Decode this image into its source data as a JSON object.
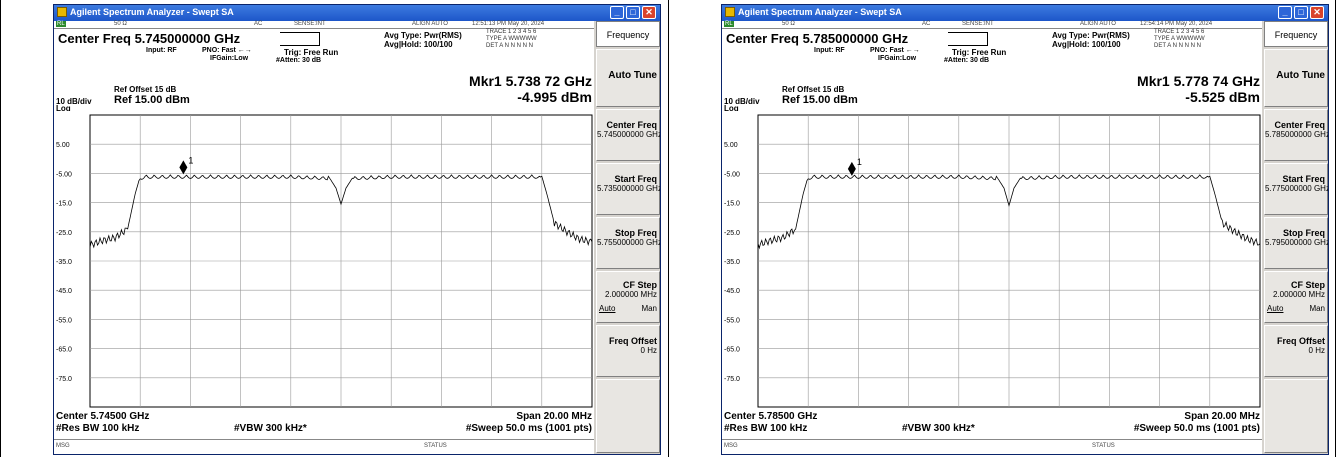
{
  "panels": [
    {
      "window_title": "Agilent Spectrum Analyzer - Swept SA",
      "status_strip": {
        "rl": "RL",
        "impedance": "50 Ω",
        "coupling": "AC",
        "sense": "SENSE:INT",
        "align": "ALIGN AUTO",
        "datetime": "12:51:13 PM May 20, 2024"
      },
      "center_freq_label": "Center Freq 5.745000000 GHz",
      "input": "Input: RF",
      "pno": "PNO: Fast ←→",
      "ifgain": "IFGain:Low",
      "trig": "Trig: Free Run",
      "atten": "#Atten: 30 dB",
      "avg_type": "Avg Type: Pwr(RMS)",
      "avg_hold": "Avg|Hold: 100/100",
      "trace_line1": "TRACE 1 2 3 4 5 6",
      "trace_line2": "TYPE A WWWWW",
      "trace_line3": "DET A N N N N N",
      "ref_offset": "Ref Offset 15 dB",
      "scale": "10 dB/div",
      "ref_level": "Ref 15.00 dBm",
      "log": "Log",
      "marker_freq": "Mkr1 5.738 72 GHz",
      "marker_level": "-4.995 dBm",
      "center_bottom": "Center 5.74500 GHz",
      "span": "Span 20.00 MHz",
      "res_bw": "#Res BW 100 kHz",
      "vbw": "#VBW 300 kHz*",
      "sweep": "#Sweep  50.0 ms (1001 pts)",
      "msg": "MSG",
      "status": "STATUS",
      "marker_number": "1",
      "chart_data": {
        "type": "line",
        "ylim": [
          -85,
          15
        ],
        "y_ticks": [
          "5.00",
          "-5.00",
          "-15.0",
          "-25.0",
          "-35.0",
          "-45.0",
          "-55.0",
          "-65.0",
          "-75.0"
        ],
        "x_range_mhz": [
          5735,
          5755
        ],
        "series": [
          {
            "x": [
              5735.0,
              5735.5,
              5736.0,
              5736.5,
              5736.8,
              5737.0,
              5737.2,
              5740.0,
              5743.0,
              5744.5,
              5744.8,
              5745.0,
              5745.2,
              5745.5,
              5747.0,
              5750.0,
              5752.8,
              5753.0,
              5753.2,
              5753.5,
              5754.0,
              5754.5,
              5755.0
            ],
            "y": [
              -29.5,
              -28.0,
              -27.0,
              -24.0,
              -12.0,
              -6.0,
              -5.5,
              -5.5,
              -5.5,
              -6.0,
              -10.0,
              -15.5,
              -10.0,
              -6.0,
              -5.5,
              -5.5,
              -5.5,
              -6.0,
              -12.0,
              -22.0,
              -25.0,
              -27.5,
              -28.5
            ]
          }
        ],
        "marker": {
          "x": 5738.72,
          "y": -4.995
        }
      },
      "softkeys": {
        "title": "Frequency",
        "auto_tune": "Auto Tune",
        "center_freq": "Center Freq",
        "center_freq_val": "5.745000000 GHz",
        "start_freq": "Start Freq",
        "start_freq_val": "5.735000000 GHz",
        "stop_freq": "Stop Freq",
        "stop_freq_val": "5.755000000 GHz",
        "cf_step": "CF Step",
        "cf_step_val": "2.000000 MHz",
        "auto": "Auto",
        "man": "Man",
        "freq_offset": "Freq Offset",
        "freq_offset_val": "0 Hz"
      }
    },
    {
      "window_title": "Agilent Spectrum Analyzer - Swept SA",
      "status_strip": {
        "rl": "RL",
        "impedance": "50 Ω",
        "coupling": "AC",
        "sense": "SENSE:INT",
        "align": "ALIGN AUTO",
        "datetime": "12:54:14 PM May 20, 2024"
      },
      "center_freq_label": "Center Freq 5.785000000 GHz",
      "input": "Input: RF",
      "pno": "PNO: Fast ←→",
      "ifgain": "IFGain:Low",
      "trig": "Trig: Free Run",
      "atten": "#Atten: 30 dB",
      "avg_type": "Avg Type: Pwr(RMS)",
      "avg_hold": "Avg|Hold: 100/100",
      "trace_line1": "TRACE 1 2 3 4 5 6",
      "trace_line2": "TYPE A WWWWW",
      "trace_line3": "DET A N N N N N",
      "ref_offset": "Ref Offset 15 dB",
      "scale": "10 dB/div",
      "ref_level": "Ref 15.00 dBm",
      "log": "Log",
      "marker_freq": "Mkr1 5.778 74 GHz",
      "marker_level": "-5.525 dBm",
      "center_bottom": "Center 5.78500 GHz",
      "span": "Span 20.00 MHz",
      "res_bw": "#Res BW 100 kHz",
      "vbw": "#VBW 300 kHz*",
      "sweep": "#Sweep  50.0 ms (1001 pts)",
      "msg": "MSG",
      "status": "STATUS",
      "marker_number": "1",
      "chart_data": {
        "type": "line",
        "ylim": [
          -85,
          15
        ],
        "y_ticks": [
          "5.00",
          "-5.00",
          "-15.0",
          "-25.0",
          "-35.0",
          "-45.0",
          "-55.0",
          "-65.0",
          "-75.0"
        ],
        "x_range_mhz": [
          5775,
          5795
        ],
        "series": [
          {
            "x": [
              5775.0,
              5775.5,
              5776.0,
              5776.5,
              5776.8,
              5777.0,
              5777.2,
              5780.0,
              5783.0,
              5784.5,
              5784.8,
              5785.0,
              5785.2,
              5785.5,
              5787.0,
              5790.0,
              5792.8,
              5793.0,
              5793.2,
              5793.5,
              5794.0,
              5794.5,
              5795.0
            ],
            "y": [
              -29.5,
              -28.0,
              -27.0,
              -24.0,
              -12.0,
              -6.0,
              -5.5,
              -5.5,
              -5.5,
              -6.0,
              -10.0,
              -16.0,
              -10.0,
              -6.0,
              -5.5,
              -5.5,
              -5.5,
              -6.0,
              -12.0,
              -22.0,
              -25.0,
              -27.5,
              -29.0
            ]
          }
        ],
        "marker": {
          "x": 5778.74,
          "y": -5.525
        }
      },
      "softkeys": {
        "title": "Frequency",
        "auto_tune": "Auto Tune",
        "center_freq": "Center Freq",
        "center_freq_val": "5.785000000 GHz",
        "start_freq": "Start Freq",
        "start_freq_val": "5.775000000 GHz",
        "stop_freq": "Stop Freq",
        "stop_freq_val": "5.795000000 GHz",
        "cf_step": "CF Step",
        "cf_step_val": "2.000000 MHz",
        "auto": "Auto",
        "man": "Man",
        "freq_offset": "Freq Offset",
        "freq_offset_val": "0 Hz"
      }
    }
  ]
}
